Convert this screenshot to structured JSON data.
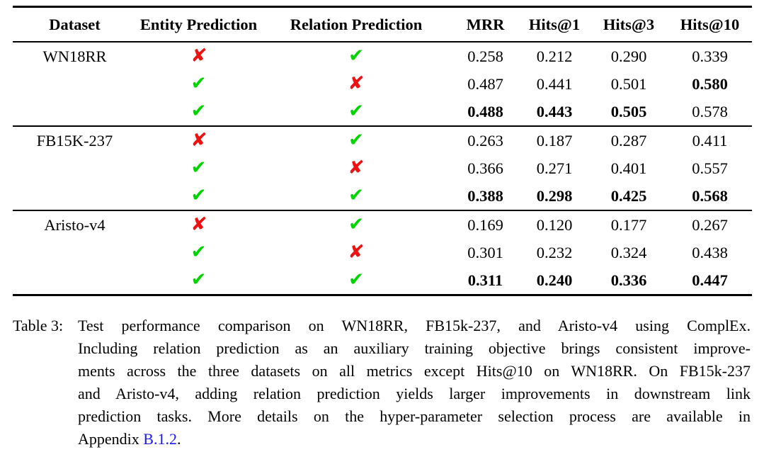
{
  "colors": {
    "background": "#ffffff",
    "text": "#000000",
    "check_green": "#00d400",
    "cross_red": "#ee1111",
    "link_blue": "#1a1aee"
  },
  "icons": {
    "check": "✔",
    "cross": "✘"
  },
  "table": {
    "headers": [
      "Dataset",
      "Entity Prediction",
      "Relation Prediction",
      "MRR",
      "Hits@1",
      "Hits@3",
      "Hits@10"
    ],
    "groups": [
      {
        "dataset": "WN18RR",
        "rows": [
          {
            "entity_prediction": false,
            "relation_prediction": true,
            "mrr": "0.258",
            "hits1": "0.212",
            "hits3": "0.290",
            "hits10": "0.339",
            "bold_metrics": []
          },
          {
            "entity_prediction": true,
            "relation_prediction": false,
            "mrr": "0.487",
            "hits1": "0.441",
            "hits3": "0.501",
            "hits10": "0.580",
            "bold_metrics": [
              "hits10"
            ]
          },
          {
            "entity_prediction": true,
            "relation_prediction": true,
            "mrr": "0.488",
            "hits1": "0.443",
            "hits3": "0.505",
            "hits10": "0.578",
            "bold_metrics": [
              "mrr",
              "hits1",
              "hits3"
            ]
          }
        ]
      },
      {
        "dataset": "FB15K-237",
        "rows": [
          {
            "entity_prediction": false,
            "relation_prediction": true,
            "mrr": "0.263",
            "hits1": "0.187",
            "hits3": "0.287",
            "hits10": "0.411",
            "bold_metrics": []
          },
          {
            "entity_prediction": true,
            "relation_prediction": false,
            "mrr": "0.366",
            "hits1": "0.271",
            "hits3": "0.401",
            "hits10": "0.557",
            "bold_metrics": []
          },
          {
            "entity_prediction": true,
            "relation_prediction": true,
            "mrr": "0.388",
            "hits1": "0.298",
            "hits3": "0.425",
            "hits10": "0.568",
            "bold_metrics": [
              "mrr",
              "hits1",
              "hits3",
              "hits10"
            ]
          }
        ]
      },
      {
        "dataset": "Aristo-v4",
        "rows": [
          {
            "entity_prediction": false,
            "relation_prediction": true,
            "mrr": "0.169",
            "hits1": "0.120",
            "hits3": "0.177",
            "hits10": "0.267",
            "bold_metrics": []
          },
          {
            "entity_prediction": true,
            "relation_prediction": false,
            "mrr": "0.301",
            "hits1": "0.232",
            "hits3": "0.324",
            "hits10": "0.438",
            "bold_metrics": []
          },
          {
            "entity_prediction": true,
            "relation_prediction": true,
            "mrr": "0.311",
            "hits1": "0.240",
            "hits3": "0.336",
            "hits10": "0.447",
            "bold_metrics": [
              "mrr",
              "hits1",
              "hits3",
              "hits10"
            ]
          }
        ]
      }
    ]
  },
  "caption": {
    "label": "Table 3:",
    "lines": [
      "Test performance comparison on WN18RR, FB15k-237, and Aristo-v4 using ComplEx.",
      "Including relation prediction as an auxiliary training objective brings consistent improve-",
      "ments across the three datasets on all metrics except Hits@10 on WN18RR. On FB15k-237",
      "and Aristo-v4, adding relation prediction yields larger improvements in downstream link",
      "prediction tasks. More details on the hyper-parameter selection process are available in"
    ],
    "last_line": {
      "prefix": "Appendix ",
      "link": "B.1.2",
      "suffix": "."
    }
  }
}
